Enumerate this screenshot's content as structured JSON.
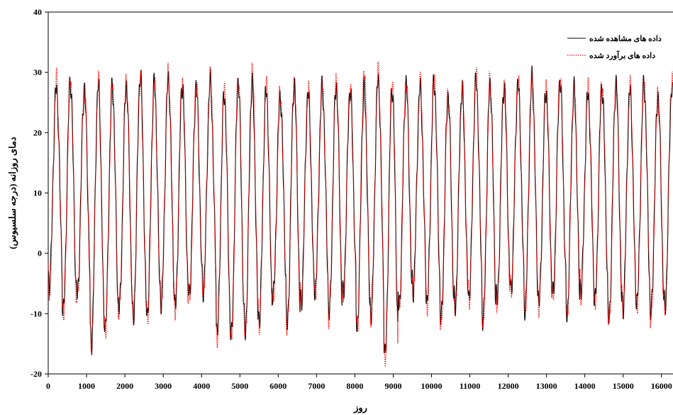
{
  "chart_data": {
    "type": "line",
    "title": "",
    "xlabel": "روز",
    "ylabel": "دمای روزانه (درجه سلسیوس)",
    "xlim": [
      0,
      16300
    ],
    "ylim": [
      -20,
      40
    ],
    "xticks": [
      0,
      1000,
      2000,
      3000,
      4000,
      5000,
      6000,
      7000,
      8000,
      9000,
      10000,
      11000,
      12000,
      13000,
      14000,
      15000,
      16000
    ],
    "yticks": [
      -20,
      -10,
      0,
      10,
      20,
      30,
      40
    ],
    "grid": false,
    "legend_position": "top-right",
    "cycle_length_days": 365,
    "series": [
      {
        "name": "داده های مشاهده شده",
        "color": "#000000",
        "style": "solid",
        "yearly_peaks": [
          27.5,
          28.5,
          27.0,
          28.0,
          27.5,
          28.0,
          29.5,
          28.0,
          29.0,
          28.0,
          27.5,
          28.5,
          26.5,
          28.5,
          28.0,
          27.0,
          26.0,
          28.0,
          26.5,
          27.5,
          28.0,
          27.0,
          27.0,
          29.0,
          27.5,
          28.0,
          27.5,
          28.5,
          26.0,
          27.0,
          28.5,
          28.0,
          27.5,
          28.0,
          29.0,
          27.0,
          28.5,
          27.0,
          26.5,
          27.5,
          28.0,
          27.0,
          28.0,
          26.0,
          27.5
        ],
        "yearly_troughs": [
          -5,
          -9.5,
          -7,
          -15,
          -12,
          -9,
          -11,
          -10,
          -8,
          -9,
          -7,
          -6,
          -13,
          -14,
          -13,
          -11,
          -7,
          -12,
          -8,
          -6,
          -10,
          -7,
          -12,
          -10,
          -17,
          -9,
          -6,
          -8,
          -11,
          -9,
          -7,
          -11,
          -8,
          -6,
          -9,
          -8,
          -7,
          -10,
          -6,
          -8,
          -11,
          -9,
          -8,
          -10,
          -9
        ]
      },
      {
        "name": "داده های برآورد شده",
        "color": "#ff0000",
        "style": "dotted",
        "yearly_peaks": [
          28.5,
          29.0,
          27.5,
          28.5,
          28.0,
          28.5,
          29.5,
          28.5,
          29.5,
          28.5,
          28.0,
          29.0,
          27.0,
          29.0,
          30.5,
          27.5,
          26.5,
          28.5,
          27.0,
          28.0,
          28.5,
          27.5,
          30.0,
          29.5,
          28.5,
          28.5,
          28.0,
          29.0,
          26.5,
          27.5,
          29.5,
          28.5,
          28.0,
          28.5,
          29.5,
          27.5,
          29.0,
          27.5,
          27.0,
          28.0,
          28.5,
          27.5,
          28.5,
          26.5,
          29.0
        ],
        "yearly_troughs": [
          -6,
          -10,
          -7.5,
          -15.5,
          -12.5,
          -9.5,
          -11,
          -10.5,
          -8.5,
          -9.5,
          -7.5,
          -6.5,
          -13.5,
          -14.5,
          -13.5,
          -11.5,
          -7.5,
          -12.5,
          -8.5,
          -6.5,
          -10.5,
          -7.5,
          -12.5,
          -10.5,
          -17.5,
          -9.5,
          -6.5,
          -8.5,
          -12,
          -9.5,
          -7.5,
          -11.5,
          -8.5,
          -6.5,
          -9.5,
          -8.5,
          -7.5,
          -10.5,
          -6.5,
          -8.5,
          -11.5,
          -9.5,
          -8.5,
          -11,
          -9.5
        ]
      }
    ]
  }
}
